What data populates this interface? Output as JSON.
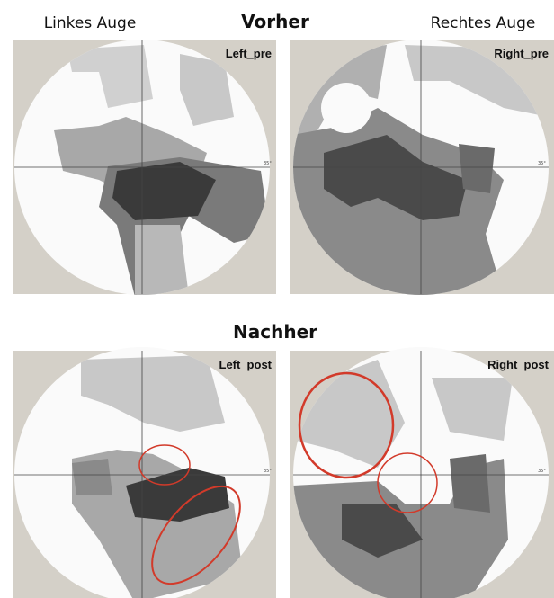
{
  "header": {
    "left_eye": "Linkes Auge",
    "title_before": "Vorher",
    "right_eye": "Rechtes Auge",
    "title_after": "Nachher"
  },
  "panels": [
    {
      "label": "Left_pre",
      "scale": "35°"
    },
    {
      "label": "Right_pre",
      "scale": "35°"
    },
    {
      "label": "Left_post",
      "scale": "35°"
    },
    {
      "label": "Right_post",
      "scale": "35°"
    }
  ]
}
